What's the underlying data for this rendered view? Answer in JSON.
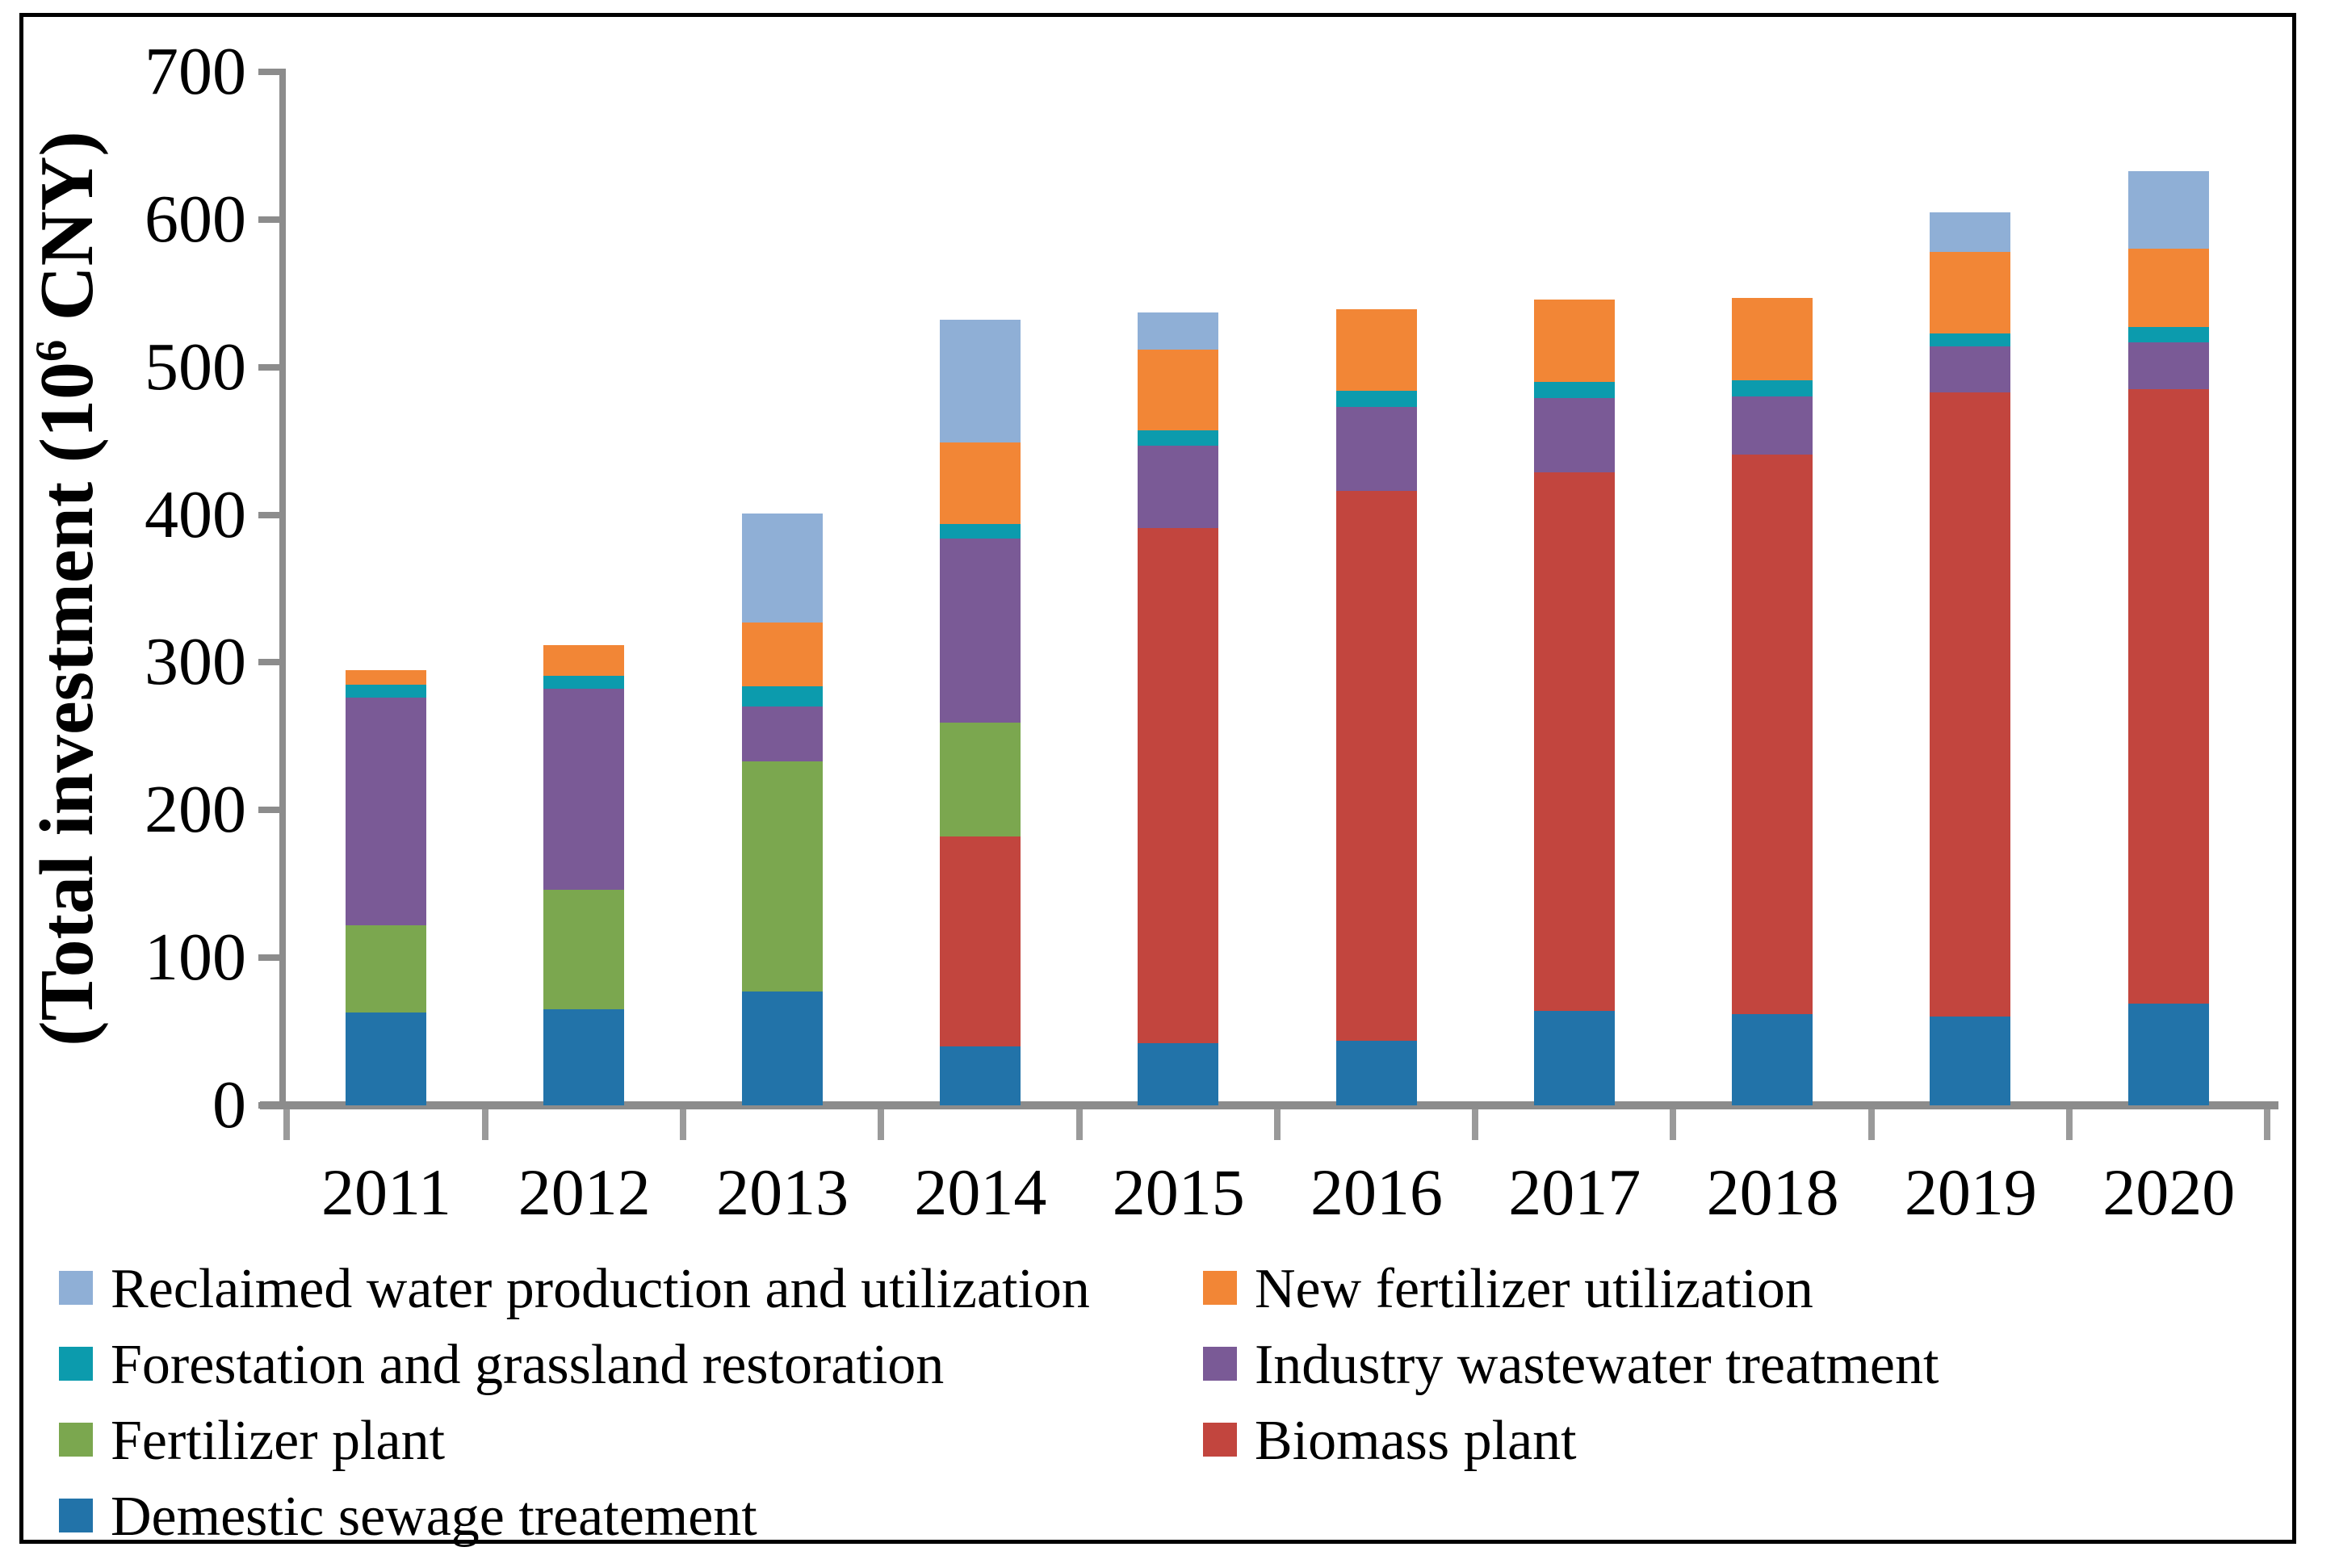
{
  "figure": {
    "y_axis": {
      "title_prefix": "(Total investment (10",
      "title_superscript": "6",
      "title_suffix": " CNY)",
      "tick_labels": [
        "0",
        "100",
        "200",
        "300",
        "400",
        "500",
        "600",
        "700"
      ],
      "min": 0,
      "max": 700,
      "step": 100
    },
    "x_axis": {
      "tick_labels": [
        "2011",
        "2012",
        "2013",
        "2014",
        "2015",
        "2016",
        "2017",
        "2018",
        "2019",
        "2020"
      ]
    }
  },
  "chart_data": {
    "type": "bar",
    "stacked": true,
    "title": "",
    "xlabel": "",
    "ylabel": "(Total investment (10⁶ CNY)",
    "ylim": [
      0,
      700
    ],
    "grid": false,
    "legend_position": "bottom",
    "categories": [
      "2011",
      "2012",
      "2013",
      "2014",
      "2015",
      "2016",
      "2017",
      "2018",
      "2019",
      "2020"
    ],
    "series": [
      {
        "name": "Demestic sewage treatement",
        "color": "#2273A9",
        "values": [
          63,
          65,
          77,
          40,
          42,
          44,
          64,
          62,
          60,
          69
        ]
      },
      {
        "name": "Biomass plant",
        "color": "#C2453E",
        "values": [
          0,
          0,
          0,
          142,
          349,
          372,
          365,
          379,
          423,
          416
        ]
      },
      {
        "name": "Fertilizer plant",
        "color": "#7BA74F",
        "values": [
          59,
          81,
          156,
          77,
          0,
          0,
          0,
          0,
          0,
          0
        ]
      },
      {
        "name": "Industry wastewater treatment",
        "color": "#7A5A96",
        "values": [
          154,
          136,
          37,
          125,
          56,
          57,
          50,
          39,
          31,
          32
        ]
      },
      {
        "name": "Forestation and grassland restoration",
        "color": "#0C9BAD",
        "values": [
          9,
          9,
          14,
          10,
          10,
          11,
          11,
          11,
          9,
          10
        ]
      },
      {
        "name": "New fertilizer utilization",
        "color": "#F28636",
        "values": [
          10,
          21,
          43,
          55,
          55,
          55,
          56,
          56,
          55,
          53
        ]
      },
      {
        "name": "Reclaimed water production and utilization",
        "color": "#8FAFD6",
        "values": [
          0,
          0,
          74,
          83,
          25,
          0,
          0,
          0,
          27,
          53
        ]
      }
    ],
    "totals": [
      295,
      312,
      401,
      532,
      537,
      539,
      546,
      547,
      605,
      633
    ]
  },
  "legend": {
    "columns": [
      [
        {
          "label": "Reclaimed water production and utilization",
          "color": "#8FAFD6"
        },
        {
          "label": "Forestation and grassland restoration",
          "color": "#0C9BAD"
        },
        {
          "label": "Fertilizer plant",
          "color": "#7BA74F"
        },
        {
          "label": "Demestic sewage treatement",
          "color": "#2273A9"
        }
      ],
      [
        {
          "label": "New fertilizer utilization",
          "color": "#F28636"
        },
        {
          "label": "Industry wastewater treatment",
          "color": "#7A5A96"
        },
        {
          "label": "Biomass plant",
          "color": "#C2453E"
        }
      ]
    ]
  },
  "colors": {
    "axis": "#8C8C8C",
    "tick": "#9A9A9A",
    "frame": "#000000",
    "background": "#FFFFFF"
  }
}
